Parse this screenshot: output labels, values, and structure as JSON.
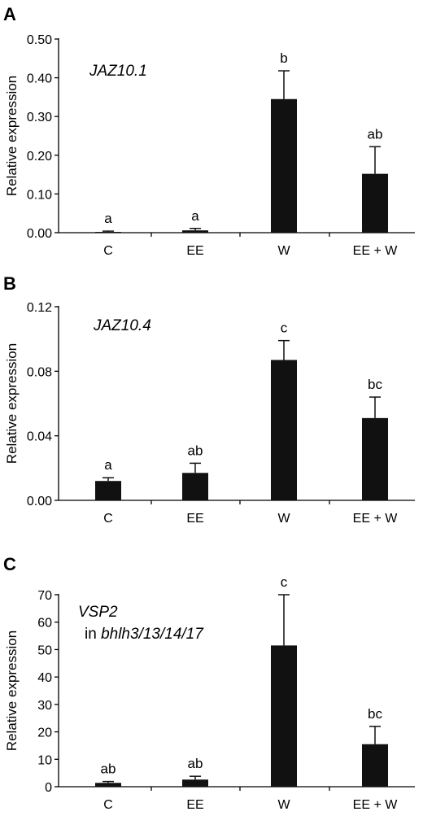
{
  "chart_data": [
    {
      "type": "bar",
      "panel_label": "A",
      "gene_label": "JAZ10.1",
      "ylabel": "Relative expression",
      "categories": [
        "C",
        "EE",
        "W",
        "EE + W"
      ],
      "values": [
        0.002,
        0.006,
        0.345,
        0.152
      ],
      "errors": [
        0.002,
        0.005,
        0.073,
        0.07
      ],
      "letters": [
        "a",
        "a",
        "b",
        "ab"
      ],
      "ylim": [
        0,
        0.5
      ],
      "yticks": [
        0,
        0.1,
        0.2,
        0.3,
        0.4,
        0.5
      ],
      "ytick_labels": [
        "0.00",
        "0.10",
        "0.20",
        "0.30",
        "0.40",
        "0.50"
      ],
      "bar_color": "#111111"
    },
    {
      "type": "bar",
      "panel_label": "B",
      "gene_label": "JAZ10.4",
      "ylabel": "Relative expression",
      "categories": [
        "C",
        "EE",
        "W",
        "EE + W"
      ],
      "values": [
        0.012,
        0.017,
        0.087,
        0.051
      ],
      "errors": [
        0.002,
        0.006,
        0.012,
        0.013
      ],
      "letters": [
        "a",
        "ab",
        "c",
        "bc"
      ],
      "ylim": [
        0,
        0.12
      ],
      "yticks": [
        0,
        0.04,
        0.08,
        0.12
      ],
      "ytick_labels": [
        "0.00",
        "0.04",
        "0.08",
        "0.12"
      ],
      "bar_color": "#111111"
    },
    {
      "type": "bar",
      "panel_label": "C",
      "gene_label": "VSP2",
      "gene_sublabel_prefix": "in ",
      "gene_sublabel_italic": "bhlh3/13/14/17",
      "ylabel": "Relative expression",
      "categories": [
        "C",
        "EE",
        "W",
        "EE + W"
      ],
      "values": [
        1.4,
        2.6,
        51.5,
        15.5
      ],
      "errors": [
        0.5,
        1.2,
        18.5,
        6.5
      ],
      "letters": [
        "ab",
        "ab",
        "c",
        "bc"
      ],
      "ylim": [
        0,
        70
      ],
      "yticks": [
        0,
        10,
        20,
        30,
        40,
        50,
        60,
        70
      ],
      "ytick_labels": [
        "0",
        "10",
        "20",
        "30",
        "40",
        "50",
        "60",
        "70"
      ],
      "bar_color": "#111111"
    }
  ]
}
